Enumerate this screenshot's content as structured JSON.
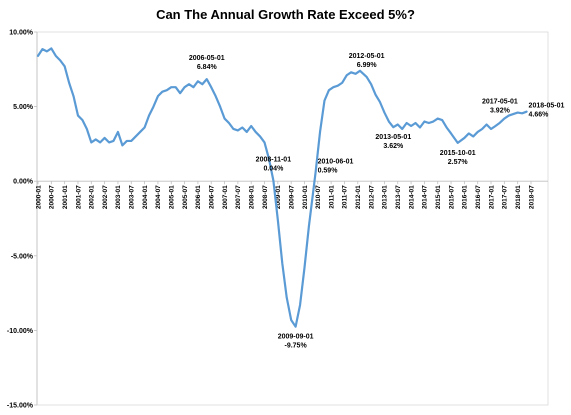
{
  "chart_data": {
    "type": "line",
    "title": "Can The Annual Growth Rate Exceed 5%?",
    "xlabel": "",
    "ylabel": "",
    "ylim": [
      -15,
      10
    ],
    "y_ticks": [
      "10.00%",
      "5.00%",
      "0.00%",
      "-5.00%",
      "-10.00%",
      "-15.00%"
    ],
    "y_tick_values": [
      10,
      5,
      0,
      -5,
      -10,
      -15
    ],
    "x_tick_labels": [
      "2000-01",
      "2000-07",
      "2001-01",
      "2001-07",
      "2002-01",
      "2002-07",
      "2003-01",
      "2003-07",
      "2004-01",
      "2004-07",
      "2005-01",
      "2005-07",
      "2006-01",
      "2006-07",
      "2007-01",
      "2007-07",
      "2008-01",
      "2008-07",
      "2009-01",
      "2009-07",
      "2010-01",
      "2010-07",
      "2011-01",
      "2011-07",
      "2012-01",
      "2012-07",
      "2013-01",
      "2013-07",
      "2014-01",
      "2014-07",
      "2015-01",
      "2015-07",
      "2016-01",
      "2016-07",
      "2017-01",
      "2017-07",
      "2018-01",
      "2018-07"
    ],
    "line_color": "#5b9bd5",
    "grid": "none",
    "legend": "none",
    "series": [
      {
        "points": [
          [
            "2000-01",
            8.4
          ],
          [
            "2000-03",
            8.85
          ],
          [
            "2000-05",
            8.7
          ],
          [
            "2000-07",
            8.9
          ],
          [
            "2000-09",
            8.4
          ],
          [
            "2000-11",
            8.1
          ],
          [
            "2001-01",
            7.7
          ],
          [
            "2001-03",
            6.6
          ],
          [
            "2001-05",
            5.7
          ],
          [
            "2001-07",
            4.4
          ],
          [
            "2001-09",
            4.1
          ],
          [
            "2001-11",
            3.5
          ],
          [
            "2002-01",
            2.6
          ],
          [
            "2002-03",
            2.8
          ],
          [
            "2002-05",
            2.6
          ],
          [
            "2002-07",
            2.9
          ],
          [
            "2002-09",
            2.6
          ],
          [
            "2002-11",
            2.7
          ],
          [
            "2003-01",
            3.3
          ],
          [
            "2003-03",
            2.4
          ],
          [
            "2003-05",
            2.7
          ],
          [
            "2003-07",
            2.7
          ],
          [
            "2003-09",
            3.0
          ],
          [
            "2003-11",
            3.3
          ],
          [
            "2004-01",
            3.6
          ],
          [
            "2004-03",
            4.4
          ],
          [
            "2004-05",
            5.0
          ],
          [
            "2004-07",
            5.7
          ],
          [
            "2004-09",
            6.0
          ],
          [
            "2004-11",
            6.1
          ],
          [
            "2005-01",
            6.3
          ],
          [
            "2005-03",
            6.3
          ],
          [
            "2005-05",
            5.9
          ],
          [
            "2005-07",
            6.3
          ],
          [
            "2005-09",
            6.5
          ],
          [
            "2005-11",
            6.3
          ],
          [
            "2006-01",
            6.7
          ],
          [
            "2006-03",
            6.5
          ],
          [
            "2006-05",
            6.84
          ],
          [
            "2006-07",
            6.3
          ],
          [
            "2006-09",
            5.7
          ],
          [
            "2006-11",
            5.0
          ],
          [
            "2007-01",
            4.2
          ],
          [
            "2007-03",
            3.9
          ],
          [
            "2007-05",
            3.5
          ],
          [
            "2007-07",
            3.4
          ],
          [
            "2007-09",
            3.6
          ],
          [
            "2007-11",
            3.3
          ],
          [
            "2008-01",
            3.7
          ],
          [
            "2008-03",
            3.3
          ],
          [
            "2008-05",
            3.0
          ],
          [
            "2008-07",
            2.6
          ],
          [
            "2008-09",
            1.5
          ],
          [
            "2008-11",
            0.04
          ],
          [
            "2009-01",
            -2.6
          ],
          [
            "2009-03",
            -5.5
          ],
          [
            "2009-05",
            -7.8
          ],
          [
            "2009-07",
            -9.3
          ],
          [
            "2009-09",
            -9.75
          ],
          [
            "2009-11",
            -8.3
          ],
          [
            "2010-01",
            -5.8
          ],
          [
            "2010-03",
            -3.0
          ],
          [
            "2010-06",
            0.59
          ],
          [
            "2010-08",
            3.3
          ],
          [
            "2010-10",
            5.4
          ],
          [
            "2010-12",
            6.1
          ],
          [
            "2011-02",
            6.3
          ],
          [
            "2011-04",
            6.4
          ],
          [
            "2011-06",
            6.6
          ],
          [
            "2011-08",
            7.1
          ],
          [
            "2011-10",
            7.3
          ],
          [
            "2011-12",
            7.2
          ],
          [
            "2012-02",
            7.4
          ],
          [
            "2012-05",
            6.99
          ],
          [
            "2012-07",
            6.5
          ],
          [
            "2012-09",
            5.8
          ],
          [
            "2012-11",
            5.3
          ],
          [
            "2013-01",
            4.6
          ],
          [
            "2013-03",
            4.0
          ],
          [
            "2013-05",
            3.62
          ],
          [
            "2013-07",
            3.8
          ],
          [
            "2013-09",
            3.5
          ],
          [
            "2013-11",
            3.9
          ],
          [
            "2014-01",
            3.7
          ],
          [
            "2014-03",
            3.9
          ],
          [
            "2014-05",
            3.6
          ],
          [
            "2014-07",
            4.0
          ],
          [
            "2014-09",
            3.9
          ],
          [
            "2014-11",
            4.0
          ],
          [
            "2015-01",
            4.2
          ],
          [
            "2015-03",
            4.1
          ],
          [
            "2015-05",
            3.6
          ],
          [
            "2015-07",
            3.2
          ],
          [
            "2015-10",
            2.57
          ],
          [
            "2016-01",
            2.9
          ],
          [
            "2016-03",
            3.2
          ],
          [
            "2016-05",
            3.0
          ],
          [
            "2016-07",
            3.3
          ],
          [
            "2016-09",
            3.5
          ],
          [
            "2016-11",
            3.8
          ],
          [
            "2017-01",
            3.5
          ],
          [
            "2017-03",
            3.7
          ],
          [
            "2017-05",
            3.92
          ],
          [
            "2017-07",
            4.2
          ],
          [
            "2017-09",
            4.4
          ],
          [
            "2017-11",
            4.5
          ],
          [
            "2018-01",
            4.6
          ],
          [
            "2018-03",
            4.55
          ],
          [
            "2018-05",
            4.66
          ]
        ]
      }
    ],
    "annotations": [
      {
        "date_label": "2006-05-01",
        "value_label": "6.84%",
        "x": "2006-05",
        "y": 6.84,
        "pos": "above"
      },
      {
        "date_label": "2008-11-01",
        "value_label": "0.04%",
        "x": "2008-11",
        "y": 0.04,
        "pos": "above"
      },
      {
        "date_label": "2009-09-01",
        "value_label": "-9.75%",
        "x": "2009-09",
        "y": -9.75,
        "pos": "below"
      },
      {
        "date_label": "2010-06-01",
        "value_label": "0.59%",
        "x": "2010-06",
        "y": 0.59,
        "pos": "right"
      },
      {
        "date_label": "2012-05-01",
        "value_label": "6.99%",
        "x": "2012-05",
        "y": 6.99,
        "pos": "above"
      },
      {
        "date_label": "2013-05-01",
        "value_label": "3.62%",
        "x": "2013-05",
        "y": 3.62,
        "pos": "below"
      },
      {
        "date_label": "2015-10-01",
        "value_label": "2.57%",
        "x": "2015-10",
        "y": 2.57,
        "pos": "below"
      },
      {
        "date_label": "2017-05-01",
        "value_label": "3.92%",
        "x": "2017-05",
        "y": 3.92,
        "pos": "above"
      },
      {
        "date_label": "2018-05-01",
        "value_label": "4.66%",
        "x": "2018-05",
        "y": 4.66,
        "pos": "right"
      }
    ]
  }
}
